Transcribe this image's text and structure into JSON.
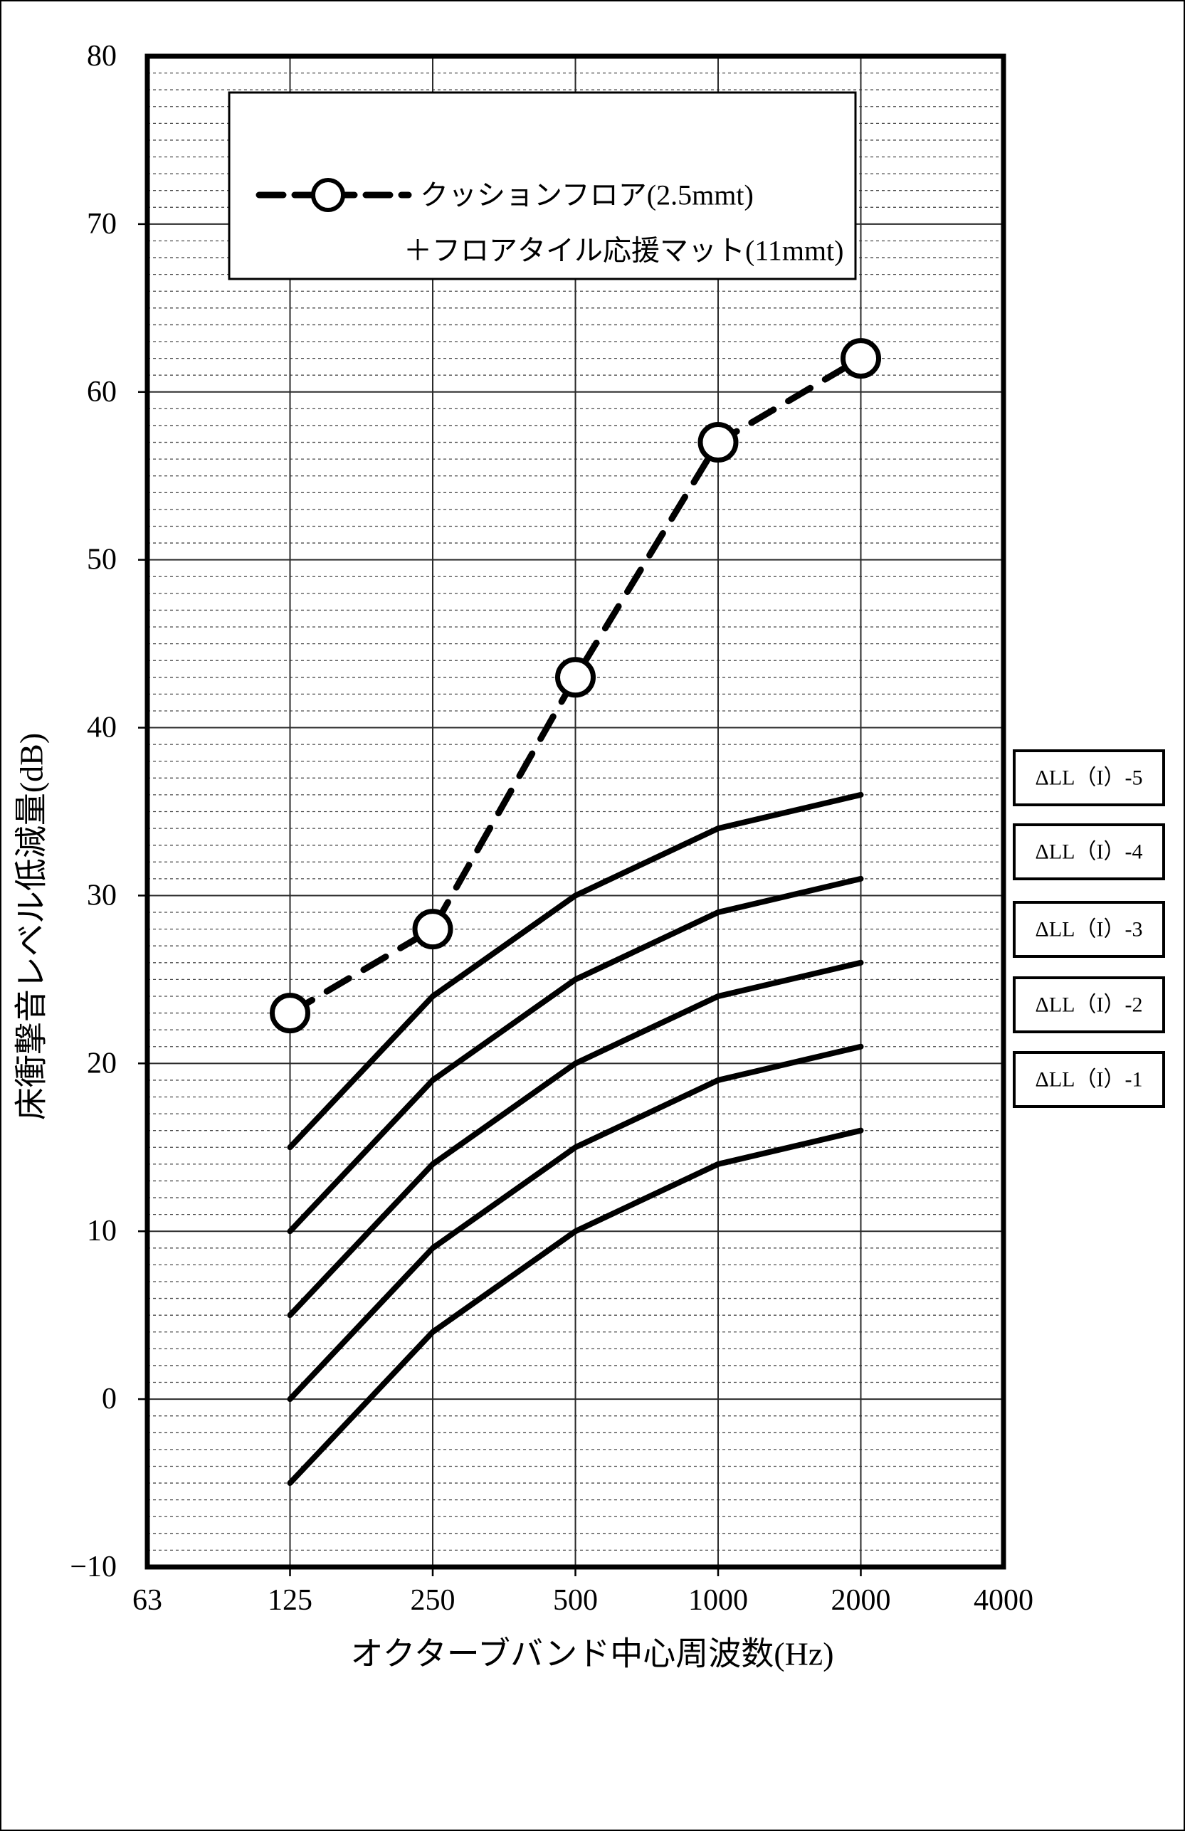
{
  "chart_data": {
    "type": "line",
    "xlabel": "オクターブバンド中心周波数(Hz)",
    "ylabel": "床衝撃音レベル低減量(dB)",
    "x_scale": "log-octave",
    "x_tick_labels": [
      "63",
      "125",
      "250",
      "500",
      "1000",
      "2000",
      "4000"
    ],
    "y_tick_labels": [
      "80",
      "70",
      "60",
      "50",
      "40",
      "30",
      "20",
      "10",
      "0",
      "−10"
    ],
    "ylim": [
      -10,
      80
    ],
    "y_major_step": 10,
    "y_minor_step": 1,
    "grid": {
      "h_minor": "dashed",
      "h_major": "solid",
      "v_octaves": "solid"
    },
    "categories": [
      125,
      250,
      500,
      1000,
      2000
    ],
    "series": [
      {
        "name": "クッションフロア(2.5mmt)＋フロアタイル応援マット(11mmt)",
        "role": "measured",
        "line": "dashed-bold",
        "marker": "open-circle",
        "values": [
          23,
          28,
          43,
          57,
          62
        ]
      },
      {
        "name": "ΔLL（I）-5",
        "role": "reference",
        "line": "solid",
        "values": [
          15,
          24,
          30,
          34,
          36
        ]
      },
      {
        "name": "ΔLL（I）-4",
        "role": "reference",
        "line": "solid",
        "values": [
          10,
          19,
          25,
          29,
          31
        ]
      },
      {
        "name": "ΔLL（I）-3",
        "role": "reference",
        "line": "solid",
        "values": [
          5,
          14,
          20,
          24,
          26
        ]
      },
      {
        "name": "ΔLL（I）-2",
        "role": "reference",
        "line": "solid",
        "values": [
          0,
          9,
          15,
          19,
          21
        ]
      },
      {
        "name": "ΔLL（I）-1",
        "role": "reference",
        "line": "solid",
        "values": [
          -5,
          4,
          10,
          14,
          16
        ]
      }
    ],
    "legend": {
      "position": "top-left-inside",
      "line1": "クッションフロア(2.5mmt)",
      "line2": "＋フロアタイル応援マット(11mmt)"
    },
    "right_labels": [
      "ΔLL（I）-5",
      "ΔLL（I）-4",
      "ΔLL（I）-3",
      "ΔLL（I）-2",
      "ΔLL（I）-1"
    ],
    "colors": {
      "ink": "#000000",
      "grid_major": "#2b2b2b",
      "grid_minor": "#4a4a4a",
      "background": "#ffffff"
    }
  }
}
